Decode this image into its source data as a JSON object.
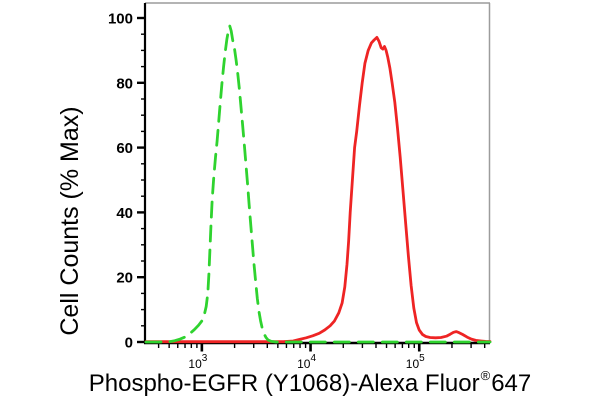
{
  "chart_data": {
    "type": "line",
    "subtype": "flow-cytometry-histogram",
    "title": "",
    "xlabel": "Phospho-EGFR (Y1068)-Alexa Fluor®647",
    "xlabel_main": "Phospho-EGFR (Y1068)-Alexa Fluor",
    "xlabel_sup": "®",
    "xlabel_end": "647",
    "ylabel": "Cell Counts (% Max)",
    "grid": false,
    "legend": "none",
    "x_axis": {
      "scale": "log10",
      "min_log10": 2.486,
      "max_log10": 5.651,
      "major_ticks": [
        {
          "log10": 3,
          "label": "10³",
          "base": "10",
          "exp": "3"
        },
        {
          "log10": 4,
          "label": "10⁴",
          "base": "10",
          "exp": "4"
        },
        {
          "log10": 5,
          "label": "10⁵",
          "base": "10",
          "exp": "5"
        }
      ],
      "minor_ticks": "log multiples 2-9 per decade"
    },
    "y_axis": {
      "min": 0,
      "max": 100,
      "major_tick_step": 20,
      "minor_tick_step": 5,
      "tick_labels": [
        "0",
        "20",
        "40",
        "60",
        "80",
        "100"
      ]
    },
    "colors": {
      "axis": "#000000",
      "frame": "#9c9c9c",
      "text": "#000000",
      "green_series": "#2fd32f",
      "red_series": "#ee2424"
    },
    "series": [
      {
        "id": "green-dashed-histogram",
        "appearance": "green dashed line, peak ~97% at ~1.8e3",
        "color": "#2fd32f",
        "line_style": "dashed",
        "points_log10x_percent": [
          [
            2.486,
            0
          ],
          [
            2.6,
            0
          ],
          [
            2.7,
            0.1
          ],
          [
            2.75,
            0.4
          ],
          [
            2.8,
            0.9
          ],
          [
            2.85,
            1.6
          ],
          [
            2.89,
            2.6
          ],
          [
            2.93,
            3.8
          ],
          [
            2.97,
            5.2
          ],
          [
            3.0,
            6.5
          ],
          [
            3.02,
            8
          ],
          [
            3.04,
            11
          ],
          [
            3.055,
            15
          ],
          [
            3.065,
            21
          ],
          [
            3.075,
            29
          ],
          [
            3.085,
            37
          ],
          [
            3.095,
            44
          ],
          [
            3.11,
            51
          ],
          [
            3.125,
            57
          ],
          [
            3.14,
            62
          ],
          [
            3.155,
            68
          ],
          [
            3.17,
            74
          ],
          [
            3.185,
            80
          ],
          [
            3.2,
            85
          ],
          [
            3.215,
            89.5
          ],
          [
            3.23,
            93.5
          ],
          [
            3.245,
            96.3
          ],
          [
            3.257,
            97.5
          ],
          [
            3.27,
            96
          ],
          [
            3.285,
            93
          ],
          [
            3.3,
            90.5
          ],
          [
            3.315,
            87
          ],
          [
            3.33,
            83
          ],
          [
            3.345,
            78
          ],
          [
            3.36,
            72.5
          ],
          [
            3.375,
            67
          ],
          [
            3.39,
            61
          ],
          [
            3.405,
            55
          ],
          [
            3.42,
            49
          ],
          [
            3.435,
            42.5
          ],
          [
            3.45,
            36
          ],
          [
            3.465,
            30
          ],
          [
            3.48,
            24
          ],
          [
            3.495,
            18.5
          ],
          [
            3.51,
            13.5
          ],
          [
            3.525,
            9.5
          ],
          [
            3.54,
            6.5
          ],
          [
            3.555,
            4.3
          ],
          [
            3.57,
            2.7
          ],
          [
            3.59,
            1.4
          ],
          [
            3.61,
            0.6
          ],
          [
            3.64,
            0.2
          ],
          [
            3.68,
            0
          ],
          [
            3.8,
            0
          ],
          [
            4.0,
            0
          ],
          [
            4.3,
            0
          ],
          [
            4.6,
            0
          ],
          [
            4.9,
            0
          ],
          [
            5.2,
            0
          ],
          [
            5.45,
            0
          ],
          [
            5.651,
            0
          ]
        ]
      },
      {
        "id": "red-solid-histogram",
        "appearance": "red solid line, peak ~94% at ~4.1e4, small bump ~3% at ~2.2e5",
        "color": "#ee2424",
        "line_style": "solid",
        "points_log10x_percent": [
          [
            2.486,
            0.1
          ],
          [
            2.7,
            0.1
          ],
          [
            3.0,
            0.1
          ],
          [
            3.3,
            0.1
          ],
          [
            3.6,
            0.1
          ],
          [
            3.75,
            0.1
          ],
          [
            3.84,
            0.3
          ],
          [
            3.9,
            0.8
          ],
          [
            3.96,
            1.3
          ],
          [
            4.02,
            1.9
          ],
          [
            4.08,
            2.7
          ],
          [
            4.13,
            3.7
          ],
          [
            4.18,
            5
          ],
          [
            4.22,
            6.5
          ],
          [
            4.26,
            9
          ],
          [
            4.29,
            12
          ],
          [
            4.315,
            17
          ],
          [
            4.335,
            24
          ],
          [
            4.35,
            31
          ],
          [
            4.365,
            40
          ],
          [
            4.385,
            50
          ],
          [
            4.405,
            60
          ],
          [
            4.425,
            65
          ],
          [
            4.45,
            73
          ],
          [
            4.475,
            80
          ],
          [
            4.5,
            86
          ],
          [
            4.53,
            90
          ],
          [
            4.56,
            92.3
          ],
          [
            4.585,
            93.2
          ],
          [
            4.61,
            94
          ],
          [
            4.63,
            92.8
          ],
          [
            4.65,
            90.8
          ],
          [
            4.665,
            90.4
          ],
          [
            4.68,
            91.2
          ],
          [
            4.695,
            90
          ],
          [
            4.71,
            88
          ],
          [
            4.73,
            84.5
          ],
          [
            4.75,
            80
          ],
          [
            4.775,
            74
          ],
          [
            4.8,
            66
          ],
          [
            4.825,
            57
          ],
          [
            4.85,
            47
          ],
          [
            4.875,
            36.5
          ],
          [
            4.9,
            26.5
          ],
          [
            4.925,
            17.5
          ],
          [
            4.95,
            10.5
          ],
          [
            4.975,
            6
          ],
          [
            5.0,
            3.7
          ],
          [
            5.03,
            2.3
          ],
          [
            5.06,
            1.7
          ],
          [
            5.1,
            1.4
          ],
          [
            5.15,
            1.3
          ],
          [
            5.2,
            1.4
          ],
          [
            5.25,
            1.8
          ],
          [
            5.285,
            2.4
          ],
          [
            5.315,
            3.0
          ],
          [
            5.34,
            3.2
          ],
          [
            5.365,
            2.9
          ],
          [
            5.4,
            2.3
          ],
          [
            5.44,
            1.5
          ],
          [
            5.48,
            0.9
          ],
          [
            5.52,
            0.5
          ],
          [
            5.57,
            0.3
          ],
          [
            5.61,
            0.2
          ],
          [
            5.651,
            0.15
          ]
        ]
      }
    ]
  }
}
